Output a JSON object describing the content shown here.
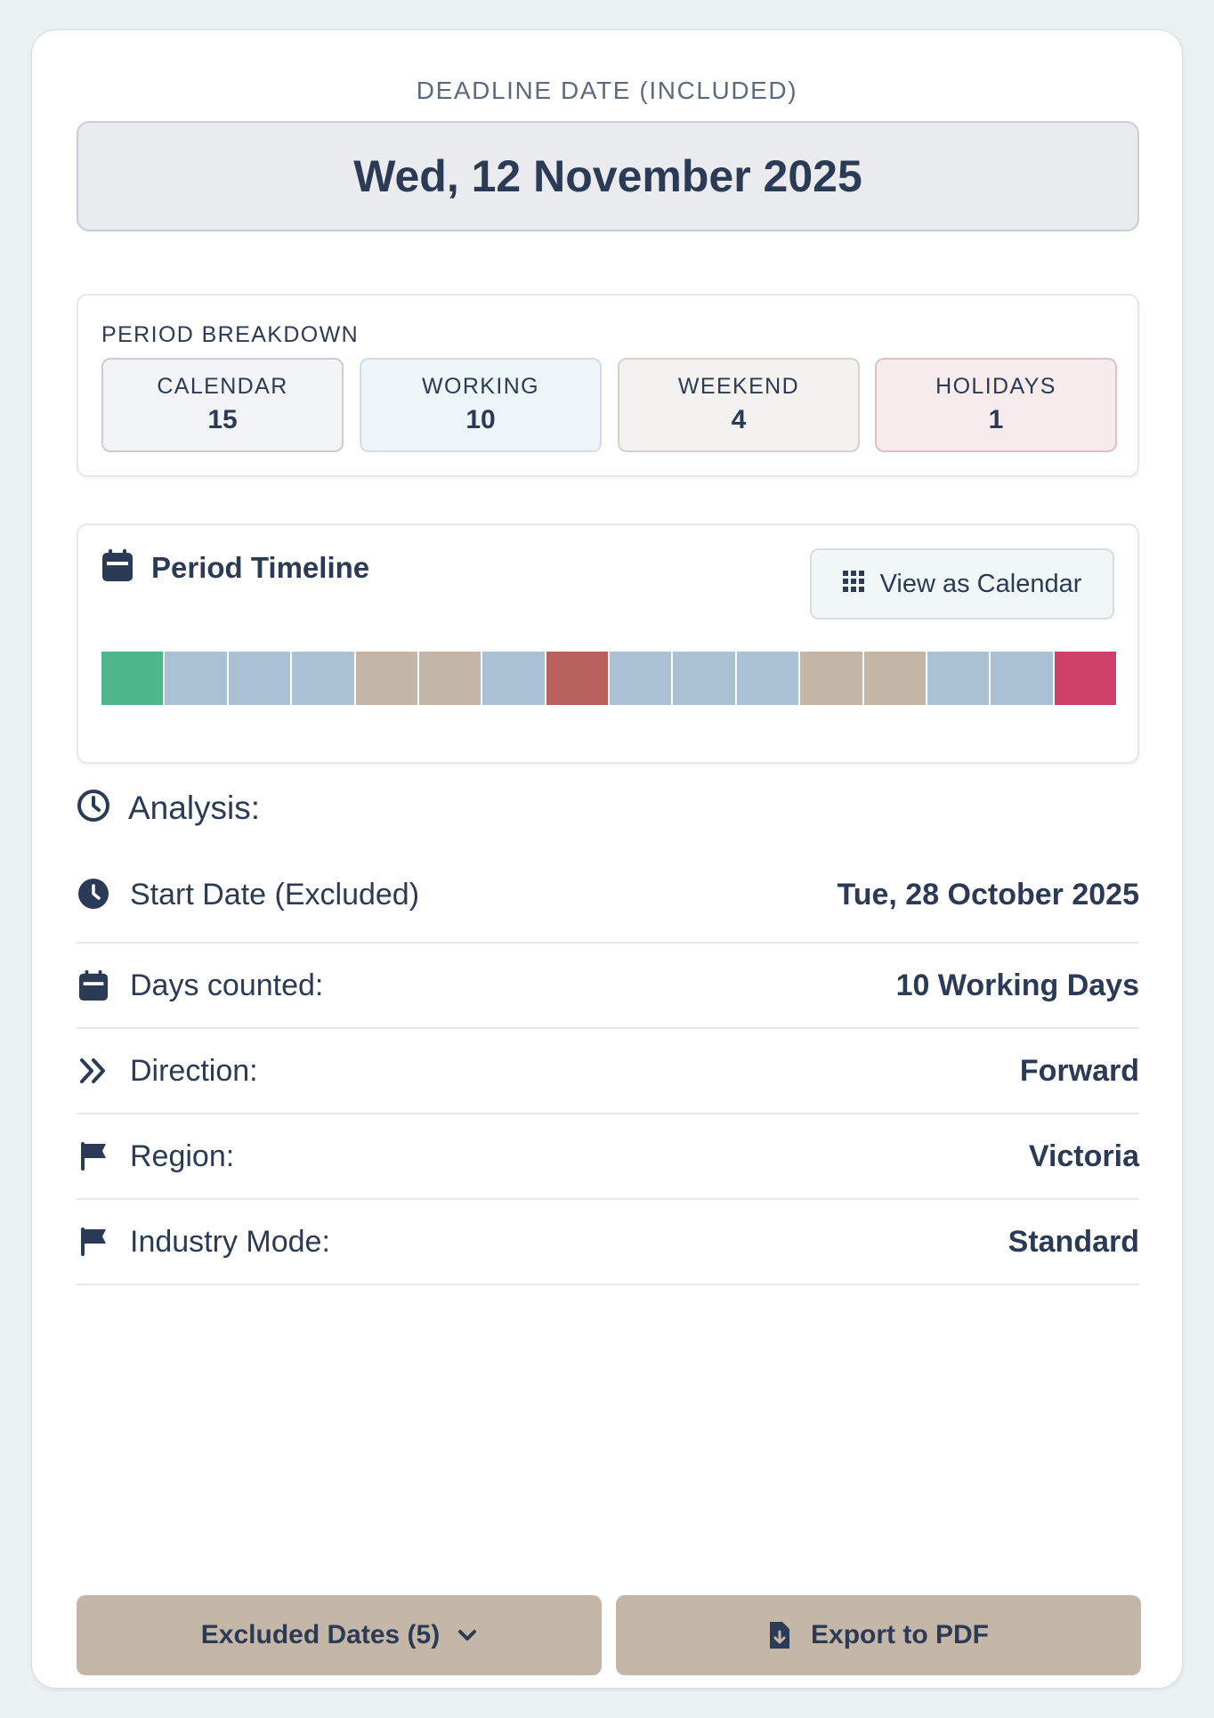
{
  "deadline": {
    "label": "DEADLINE DATE (INCLUDED)",
    "value": "Wed, 12 November 2025"
  },
  "breakdown": {
    "title": "PERIOD BREAKDOWN",
    "stats": [
      {
        "label": "CALENDAR",
        "value": "15",
        "bg": "#f3f4f6",
        "border": "#c9ced4"
      },
      {
        "label": "WORKING",
        "value": "10",
        "bg": "#eef5f8",
        "border": "#d3dde6"
      },
      {
        "label": "WEEKEND",
        "value": "4",
        "bg": "#f3f2f0",
        "border": "#d6d2cc"
      },
      {
        "label": "HOLIDAYS",
        "value": "1",
        "bg": "#f8ebec",
        "border": "#e2bfc2"
      }
    ]
  },
  "timeline": {
    "title": "Period Timeline",
    "view_calendar_label": "View as Calendar",
    "cells": [
      "start",
      "working",
      "working",
      "working",
      "weekend",
      "weekend",
      "working",
      "holiday",
      "working",
      "working",
      "working",
      "weekend",
      "weekend",
      "working",
      "working",
      "deadline"
    ],
    "colors": {
      "start": "#4fb58b",
      "working": "#a9c1d3",
      "weekend": "#c4b7a8",
      "holiday": "#b7605c",
      "deadline": "#cc4069"
    }
  },
  "analysis": {
    "title": "Analysis:",
    "rows": [
      {
        "icon": "clock-icon",
        "label": "Start Date (Excluded)",
        "value": "Tue, 28 October 2025"
      },
      {
        "icon": "calendar-icon",
        "label": "Days counted:",
        "value": "10 Working Days"
      },
      {
        "icon": "double-chevron-right-icon",
        "label": "Direction:",
        "value": "Forward"
      },
      {
        "icon": "flag-icon",
        "label": "Region:",
        "value": "Victoria"
      },
      {
        "icon": "flag-icon",
        "label": "Industry Mode:",
        "value": "Standard"
      }
    ]
  },
  "actions": {
    "excluded_dates": "Excluded Dates (5)",
    "export_pdf": "Export to PDF"
  }
}
